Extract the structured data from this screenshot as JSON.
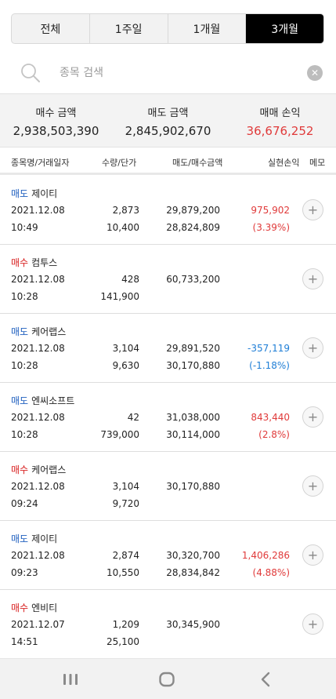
{
  "tabs": [
    {
      "label": "전체",
      "active": false
    },
    {
      "label": "1주일",
      "active": false
    },
    {
      "label": "1개월",
      "active": false
    },
    {
      "label": "3개월",
      "active": true
    }
  ],
  "search": {
    "placeholder": "종목 검색",
    "value": ""
  },
  "summary": {
    "buy_label": "매수 금액",
    "buy_value": "2,938,503,390",
    "sell_label": "매도 금액",
    "sell_value": "2,845,902,670",
    "pl_label": "매매 손익",
    "pl_value": "36,676,252"
  },
  "header": {
    "name_date": "종목명/거래일자",
    "qty_price": "수량/단가",
    "amounts": "매도/매수금액",
    "realized": "실현손익",
    "memo": "메모"
  },
  "rows": [
    {
      "type": "매도",
      "kind": "sell",
      "name": "제이티",
      "date": "2021.12.08",
      "time": "10:49",
      "qty": "2,873",
      "price": "10,400",
      "amt1": "29,879,200",
      "amt2": "28,824,809",
      "pl": "975,902",
      "pl_pct": "(3.39%)",
      "pl_sign": "pos"
    },
    {
      "type": "매수",
      "kind": "buy",
      "name": "컴투스",
      "date": "2021.12.08",
      "time": "10:28",
      "qty": "428",
      "price": "141,900",
      "amt1": "60,733,200",
      "amt2": "",
      "pl": "",
      "pl_pct": "",
      "pl_sign": ""
    },
    {
      "type": "매도",
      "kind": "sell",
      "name": "케어랩스",
      "date": "2021.12.08",
      "time": "10:28",
      "qty": "3,104",
      "price": "9,630",
      "amt1": "29,891,520",
      "amt2": "30,170,880",
      "pl": "-357,119",
      "pl_pct": "(-1.18%)",
      "pl_sign": "neg"
    },
    {
      "type": "매도",
      "kind": "sell",
      "name": "엔씨소프트",
      "date": "2021.12.08",
      "time": "10:28",
      "qty": "42",
      "price": "739,000",
      "amt1": "31,038,000",
      "amt2": "30,114,000",
      "pl": "843,440",
      "pl_pct": "(2.8%)",
      "pl_sign": "pos"
    },
    {
      "type": "매수",
      "kind": "buy",
      "name": "케어랩스",
      "date": "2021.12.08",
      "time": "09:24",
      "qty": "3,104",
      "price": "9,720",
      "amt1": "30,170,880",
      "amt2": "",
      "pl": "",
      "pl_pct": "",
      "pl_sign": ""
    },
    {
      "type": "매도",
      "kind": "sell",
      "name": "제이티",
      "date": "2021.12.08",
      "time": "09:23",
      "qty": "2,874",
      "price": "10,550",
      "amt1": "30,320,700",
      "amt2": "28,834,842",
      "pl": "1,406,286",
      "pl_pct": "(4.88%)",
      "pl_sign": "pos"
    },
    {
      "type": "매수",
      "kind": "buy",
      "name": "엔비티",
      "date": "2021.12.07",
      "time": "14:51",
      "qty": "1,209",
      "price": "25,100",
      "amt1": "30,345,900",
      "amt2": "",
      "pl": "",
      "pl_pct": "",
      "pl_sign": ""
    }
  ],
  "icons": {
    "search": "search-icon",
    "clear": "clear-icon",
    "memo": "plus-icon",
    "nav_recent": "recent-apps-icon",
    "nav_home": "home-icon",
    "nav_back": "back-icon"
  },
  "colors": {
    "sell": "#1f5fbf",
    "buy": "#d81f1f",
    "profit": "#e03a3a",
    "loss": "#1f7ed6",
    "active_tab": "#000000"
  }
}
